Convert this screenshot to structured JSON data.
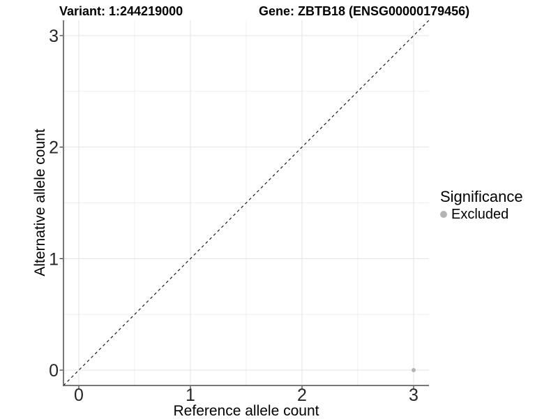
{
  "chart_data": {
    "type": "scatter",
    "titles": {
      "left": "Variant: 1:244219000",
      "right": "Gene: ZBTB18 (ENSG00000179456)"
    },
    "xlabel": "Reference allele count",
    "ylabel": "Alternative allele count",
    "xlim": [
      -0.1375,
      3.1375
    ],
    "ylim": [
      -0.1375,
      3.1375
    ],
    "x_ticks": [
      0,
      1,
      2,
      3
    ],
    "y_ticks": [
      0,
      1,
      2,
      3
    ],
    "x_minor_gridlines": [
      0.5,
      1.5,
      2.5
    ],
    "y_minor_gridlines": [
      0.5,
      1.5,
      2.5
    ],
    "grid": true,
    "legend_position": "right",
    "identity_line": {
      "equation": "y = x",
      "style": "dashed",
      "color": "#1a1a1a"
    },
    "series": [
      {
        "name": "Excluded",
        "color": "#b4b4b4",
        "points": [
          {
            "x": 3,
            "y": 0
          }
        ]
      }
    ],
    "colors": {
      "grid_major": "#e3e3e3",
      "grid_minor": "#efefef",
      "axis_line": "#4d4d4d",
      "tick": "#333333",
      "tick_label": "#262626",
      "background": "#ffffff"
    }
  },
  "legend": {
    "title": "Significance",
    "items": [
      {
        "label": "Excluded",
        "marker": "circle-icon",
        "color": "#b4b4b4"
      }
    ]
  }
}
